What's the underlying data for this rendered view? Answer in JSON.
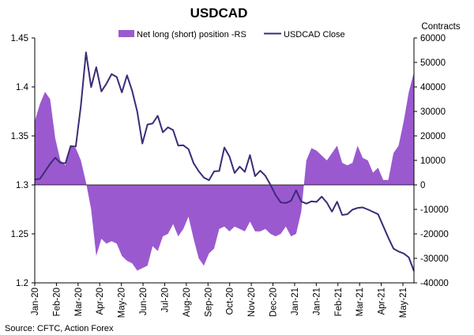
{
  "chart_data": {
    "type": "area+line",
    "title": "USDCAD",
    "right_axis_unit": "Contracts",
    "source": "Source: CFTC, Action Forex",
    "left_axis": {
      "ylim": [
        1.2,
        1.45
      ],
      "ticks": [
        "1.45",
        "1.4",
        "1.35",
        "1.3",
        "1.25",
        "1.2"
      ]
    },
    "right_axis": {
      "ylim": [
        -40000,
        60000
      ],
      "ticks": [
        "60000",
        "50000",
        "40000",
        "30000",
        "20000",
        "10000",
        "0",
        "-10000",
        "-20000",
        "-30000",
        "-40000"
      ]
    },
    "x_ticks": [
      "Jan-20",
      "Feb-20",
      "Mar-20",
      "Apr-20",
      "May-20",
      "Jun-20",
      "Jul-20",
      "Aug-20",
      "Sep-20",
      "Oct-20",
      "Nov-20",
      "Dec-20",
      "Jan-21",
      "Jan-21",
      "Feb-21",
      "Mar-21",
      "Apr-21",
      "May-21"
    ],
    "legend_position": "top",
    "series": [
      {
        "name": "Net long (short) position -RS",
        "kind": "area",
        "axis": "right",
        "color": "#9b59d0",
        "values": [
          26000,
          33000,
          38000,
          35000,
          19000,
          10000,
          8000,
          16000,
          15000,
          10000,
          1000,
          -10000,
          -29000,
          -22000,
          -24000,
          -23000,
          -24000,
          -29000,
          -31000,
          -32000,
          -35000,
          -34000,
          -33000,
          -25000,
          -27000,
          -21000,
          -20000,
          -16000,
          -21000,
          -18000,
          -13000,
          -22000,
          -30000,
          -33000,
          -28000,
          -26000,
          -18000,
          -17000,
          -19000,
          -17000,
          -18000,
          -19000,
          -15000,
          -19000,
          -19000,
          -18000,
          -20000,
          -21000,
          -20000,
          -17000,
          -21000,
          -20000,
          -11000,
          10000,
          15000,
          14000,
          12000,
          10000,
          13000,
          16000,
          9000,
          8000,
          9000,
          16000,
          11000,
          10000,
          5000,
          7000,
          2000,
          2000,
          13000,
          16000,
          26000,
          38000,
          46000
        ]
      },
      {
        "name": "USDCAD Close",
        "kind": "line",
        "axis": "left",
        "color": "#3d2a78",
        "values": [
          1.3055,
          1.3062,
          1.3138,
          1.3215,
          1.3278,
          1.3225,
          1.3221,
          1.3395,
          1.3391,
          1.3808,
          1.4353,
          1.3998,
          1.4201,
          1.3954,
          1.4034,
          1.4131,
          1.4101,
          1.3944,
          1.4118,
          1.3962,
          1.3748,
          1.3422,
          1.3616,
          1.3627,
          1.3705,
          1.3537,
          1.3588,
          1.3559,
          1.3401,
          1.3404,
          1.3365,
          1.3221,
          1.3139,
          1.3075,
          1.3047,
          1.3138,
          1.3142,
          1.3381,
          1.3289,
          1.3122,
          1.3186,
          1.3133,
          1.3304,
          1.3089,
          1.3145,
          1.3093,
          1.3001,
          1.2897,
          1.2821,
          1.2815,
          1.2837,
          1.2945,
          1.2831,
          1.2809,
          1.2832,
          1.2827,
          1.288,
          1.2819,
          1.2727,
          1.2828,
          1.2693,
          1.2701,
          1.2747,
          1.2765,
          1.277,
          1.2749,
          1.2725,
          1.27,
          1.258,
          1.246,
          1.235,
          1.232,
          1.23,
          1.226,
          1.212
        ]
      }
    ]
  }
}
